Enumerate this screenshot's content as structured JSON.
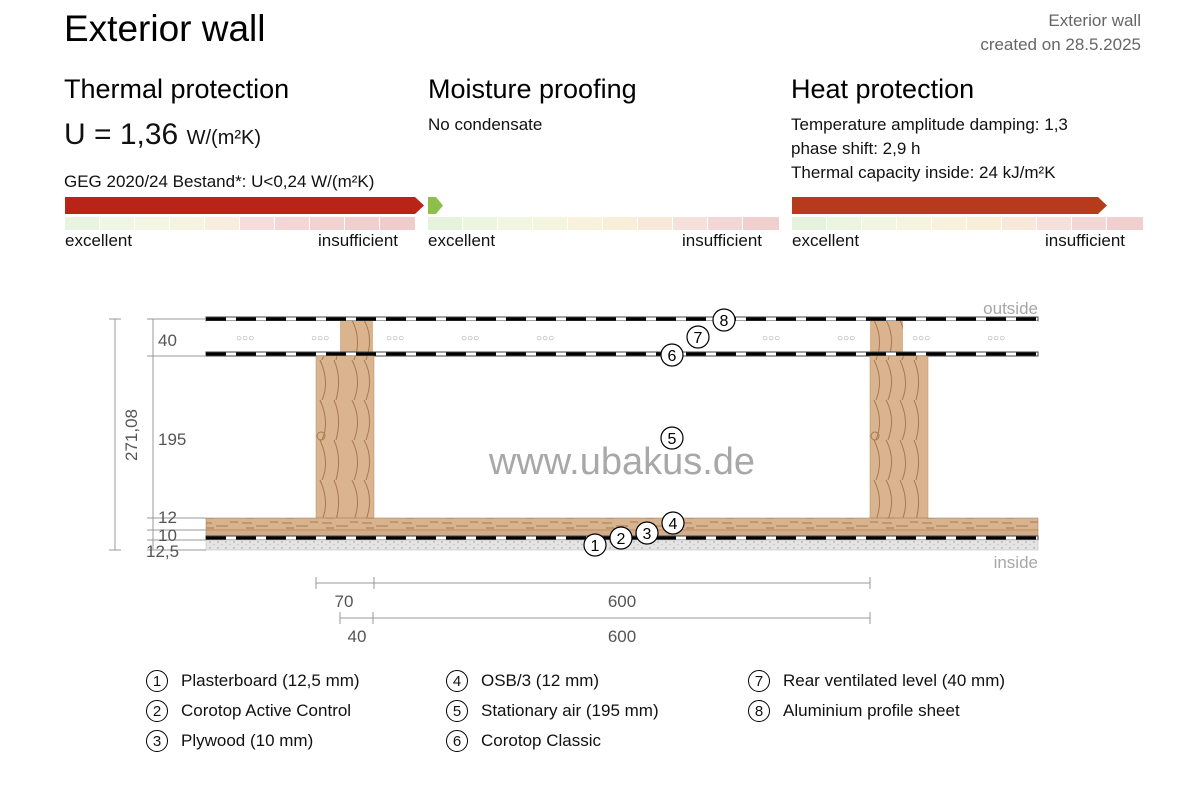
{
  "header": {
    "title": "Exterior wall",
    "meta_line1": "Exterior wall",
    "meta_line2": "created on 28.5.2025"
  },
  "thermal": {
    "heading": "Thermal protection",
    "u_label": "U = 1,36",
    "u_unit": "W/(m²K)",
    "requirement": "GEG 2020/24 Bestand*: U<0,24 W/(m²K)",
    "rating_fraction": 1.0,
    "left": "excellent",
    "right": "insufficient"
  },
  "moisture": {
    "heading": "Moisture proofing",
    "line1": "No condensate",
    "rating_fraction": 0.0,
    "left": "excellent",
    "right": "insufficient"
  },
  "heat": {
    "heading": "Heat protection",
    "line1": "Temperature amplitude damping: 1,3",
    "line2": "phase shift: 2,9 h",
    "line3": "Thermal capacity inside: 24 kJ/m²K",
    "rating_fraction": 0.88,
    "left": "excellent",
    "right": "insufficient"
  },
  "colors": {
    "bar_red": "#b82418",
    "bar_orange": "#b83a1c",
    "bar_green": "#8cc04a",
    "wood": "#d9b48f",
    "wood_line": "#a8784e"
  },
  "diagram": {
    "outside": "outside",
    "inside": "inside",
    "total": "271,08",
    "dim_40": "40",
    "dim_195": "195",
    "dim_12": "12",
    "dim_10": "10",
    "dim_125": "12,5",
    "h_70": "70",
    "h_600a": "600",
    "h_40": "40",
    "h_600b": "600",
    "watermark": "www.ubakus.de",
    "markers": [
      "1",
      "2",
      "3",
      "4",
      "5",
      "6",
      "7",
      "8"
    ]
  },
  "legend": [
    {
      "num": "1",
      "label": "Plasterboard (12,5 mm)"
    },
    {
      "num": "2",
      "label": "Corotop Active Control"
    },
    {
      "num": "3",
      "label": "Plywood (10 mm)"
    },
    {
      "num": "4",
      "label": "OSB/3 (12 mm)"
    },
    {
      "num": "5",
      "label": "Stationary air (195 mm)"
    },
    {
      "num": "6",
      "label": "Corotop Classic"
    },
    {
      "num": "7",
      "label": "Rear ventilated level (40 mm)"
    },
    {
      "num": "8",
      "label": "Aluminium profile sheet"
    }
  ]
}
